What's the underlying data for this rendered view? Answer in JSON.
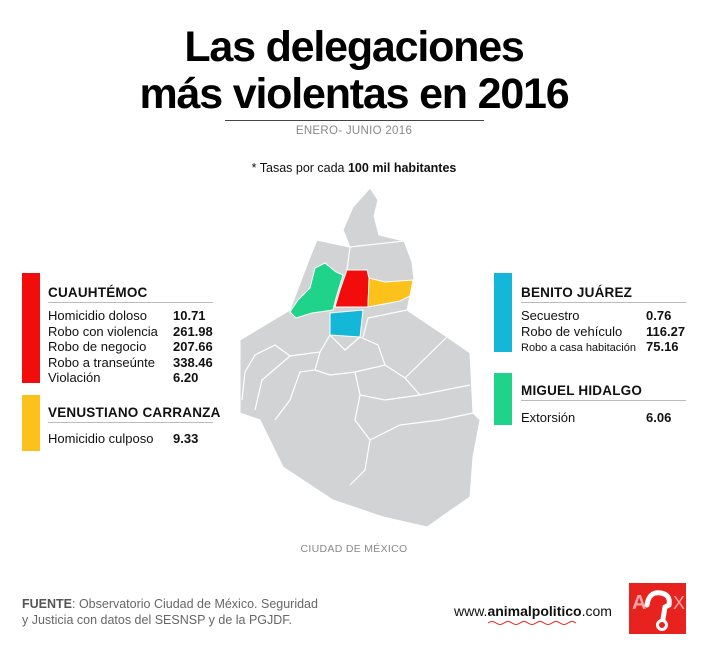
{
  "header": {
    "title_line1": "Las delegaciones",
    "title_line2": "más violentas en 2016",
    "period": "ENERO- JUNIO 2016",
    "note_prefix": "* Tasas por cada ",
    "note_bold": "100 mil habitantes"
  },
  "colors": {
    "cuauhtemoc": "#f20c0c",
    "venustiano_carranza": "#fcc21b",
    "benito_juarez": "#14b7d8",
    "miguel_hidalgo": "#1fd38a",
    "map_gray": "#d2d3d5",
    "logo_red": "#e8231f"
  },
  "panels": [
    {
      "name": "CUAUHTÉMOC",
      "rows": [
        {
          "label": "Homicidio doloso",
          "value": "10.71"
        },
        {
          "label": "Robo con violencia",
          "value": "261.98"
        },
        {
          "label": "Robo de negocio",
          "value": "207.66"
        },
        {
          "label": "Robo a transeúnte",
          "value": "338.46"
        },
        {
          "label": "Violación",
          "value": "6.20"
        }
      ]
    },
    {
      "name": "VENUSTIANO CARRANZA",
      "rows": [
        {
          "label": "Homicidio culposo",
          "value": "9.33"
        }
      ]
    },
    {
      "name": "BENITO JUÁREZ",
      "rows": [
        {
          "label": "Secuestro",
          "value": "0.76"
        },
        {
          "label": "Robo de vehículo",
          "value": "116.27"
        },
        {
          "label": "Robo a casa habitación",
          "value": "75.16"
        }
      ]
    },
    {
      "name": "MIGUEL HIDALGO",
      "rows": [
        {
          "label": "Extorsión",
          "value": "6.06"
        }
      ]
    }
  ],
  "map": {
    "label": "CIUDAD DE MÉXICO"
  },
  "footer": {
    "source_label": "FUENTE",
    "source_line1": ": Observatorio Ciudad de México. Seguridad",
    "source_line2": "y Justicia con datos del SESNSP y de la PGJDF.",
    "url_prefix": "www.",
    "url_bold": "animalpolitico",
    "url_suffix": ".com",
    "logo_text": "ANX"
  }
}
